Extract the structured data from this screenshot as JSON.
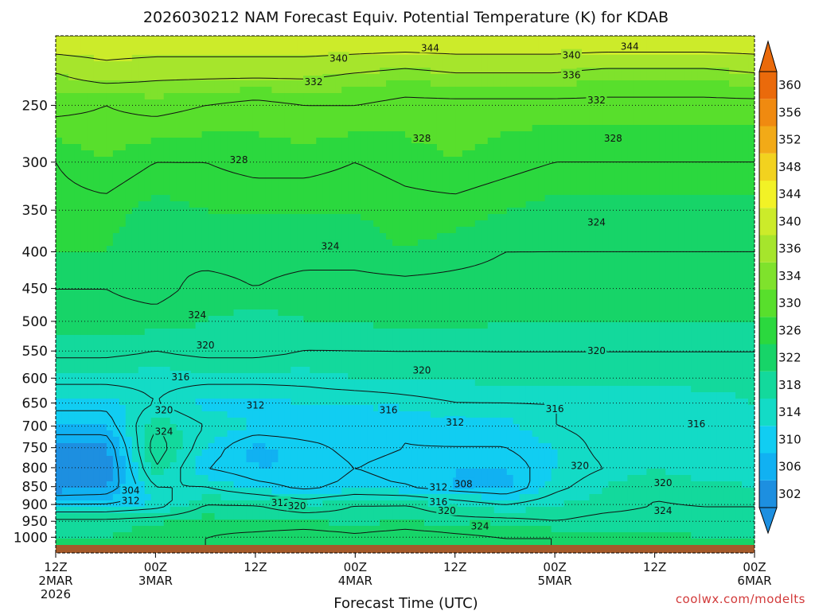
{
  "chart_data": {
    "type": "heatmap",
    "title": "2026030212 NAM Forecast Equiv. Potential Temperature (K) for KDAB",
    "xlabel": "Forecast Time (UTC)",
    "ylabel": "",
    "credit": "coolwx.com/modelts",
    "x_ticks": [
      {
        "hours": 0,
        "line1": "12Z",
        "line2": "2MAR",
        "line3": "2026"
      },
      {
        "hours": 12,
        "line1": "00Z",
        "line2": "3MAR",
        "line3": ""
      },
      {
        "hours": 24,
        "line1": "12Z",
        "line2": "",
        "line3": ""
      },
      {
        "hours": 36,
        "line1": "00Z",
        "line2": "4MAR",
        "line3": ""
      },
      {
        "hours": 48,
        "line1": "12Z",
        "line2": "",
        "line3": ""
      },
      {
        "hours": 60,
        "line1": "00Z",
        "line2": "5MAR",
        "line3": ""
      },
      {
        "hours": 72,
        "line1": "12Z",
        "line2": "",
        "line3": ""
      },
      {
        "hours": 84,
        "line1": "00Z",
        "line2": "6MAR",
        "line3": ""
      }
    ],
    "x_range_hours": [
      0,
      84
    ],
    "y_axis": "pressure (hPa), log scale, inverted",
    "y_ticks": [
      250,
      300,
      350,
      400,
      450,
      500,
      550,
      600,
      650,
      700,
      750,
      800,
      850,
      900,
      950,
      1000
    ],
    "y_range": [
      200,
      1025
    ],
    "colorbar": {
      "labels": [
        302,
        306,
        310,
        314,
        318,
        322,
        326,
        330,
        334,
        336,
        340,
        344,
        348,
        352,
        356,
        360
      ],
      "colors": [
        "#1d8fe0",
        "#11b1f2",
        "#11cdf2",
        "#13dbc6",
        "#13d99c",
        "#17d468",
        "#2bd83e",
        "#58df2c",
        "#7fe22c",
        "#a6e52c",
        "#cceb2a",
        "#f2f226",
        "#f2d21f",
        "#f2aa17",
        "#f08a10",
        "#ea6a0b"
      ]
    },
    "contour_interval": 4,
    "levels": [
      1000,
      950,
      900,
      850,
      800,
      750,
      700,
      650,
      600,
      550,
      500,
      450,
      400,
      350,
      300,
      250,
      225,
      200
    ],
    "times": [
      0,
      6,
      12,
      18,
      24,
      30,
      36,
      42,
      48,
      54,
      60,
      66,
      72,
      78,
      84
    ],
    "values": [
      [
        322,
        322,
        323,
        324,
        325,
        326,
        325,
        326,
        325,
        324,
        324,
        323,
        323,
        322,
        322
      ],
      [
        321,
        321,
        322,
        323,
        322,
        322,
        321,
        322,
        321,
        321,
        320,
        321,
        321,
        320,
        320
      ],
      [
        312,
        312,
        314,
        320,
        320,
        318,
        320,
        320,
        318,
        316,
        318,
        319,
        320,
        320,
        320
      ],
      [
        304,
        305,
        316,
        316,
        313,
        311,
        313,
        312,
        310,
        309,
        315,
        318,
        320,
        319,
        318
      ],
      [
        304,
        304,
        320,
        312,
        310,
        310,
        312,
        311,
        310,
        310,
        314,
        316,
        318,
        316,
        316
      ],
      [
        305,
        305,
        322,
        314,
        309,
        311,
        313,
        312,
        312,
        312,
        314,
        317,
        317,
        316,
        316
      ],
      [
        310,
        310,
        320,
        316,
        314,
        314,
        313,
        312,
        313,
        313,
        316,
        317,
        317,
        316,
        318
      ],
      [
        313,
        313,
        316,
        313,
        313,
        314,
        314,
        315,
        316,
        316,
        316,
        316,
        316,
        317,
        318
      ],
      [
        317,
        317,
        317,
        317,
        317,
        317,
        318,
        318,
        318,
        319,
        319,
        319,
        319,
        319,
        319
      ],
      [
        321,
        321,
        320,
        321,
        321,
        320,
        320,
        320,
        320,
        320,
        320,
        320,
        320,
        320,
        320
      ],
      [
        323,
        323,
        323,
        322,
        321,
        322,
        322,
        323,
        323,
        322,
        322,
        322,
        322,
        322,
        322
      ],
      [
        324,
        324,
        325,
        323,
        324,
        323,
        323,
        323,
        323,
        323,
        323,
        323,
        323,
        323,
        323
      ],
      [
        326,
        326,
        324,
        325,
        325,
        325,
        325,
        326,
        325,
        324,
        324,
        324,
        324,
        324,
        324
      ],
      [
        327,
        327,
        325,
        326,
        326,
        326,
        326,
        327,
        327,
        326,
        325,
        325,
        325,
        325,
        325
      ],
      [
        328,
        330,
        328,
        328,
        329,
        329,
        328,
        329,
        330,
        329,
        328,
        328,
        328,
        328,
        328
      ],
      [
        333,
        332,
        333,
        332,
        331,
        332,
        332,
        331,
        331,
        331,
        331,
        331,
        331,
        331,
        331
      ],
      [
        336,
        338,
        337,
        337,
        337,
        337,
        336,
        335,
        336,
        336,
        336,
        335,
        335,
        335,
        336
      ],
      [
        344,
        344,
        344,
        344,
        344,
        344,
        344,
        344,
        344,
        344,
        344,
        344,
        344,
        344,
        344
      ]
    ],
    "contour_labels": [
      {
        "text": "344",
        "hours": 45,
        "p": 208
      },
      {
        "text": "344",
        "hours": 69,
        "p": 207
      },
      {
        "text": "340",
        "hours": 34,
        "p": 215
      },
      {
        "text": "340",
        "hours": 62,
        "p": 213
      },
      {
        "text": "336",
        "hours": 62,
        "p": 227
      },
      {
        "text": "332",
        "hours": 31,
        "p": 232
      },
      {
        "text": "332",
        "hours": 65,
        "p": 246
      },
      {
        "text": "328",
        "hours": 22,
        "p": 298
      },
      {
        "text": "328",
        "hours": 44,
        "p": 278
      },
      {
        "text": "328",
        "hours": 67,
        "p": 278
      },
      {
        "text": "324",
        "hours": 33,
        "p": 393
      },
      {
        "text": "324",
        "hours": 65,
        "p": 364
      },
      {
        "text": "324",
        "hours": 17,
        "p": 490
      },
      {
        "text": "320",
        "hours": 18,
        "p": 540
      },
      {
        "text": "320",
        "hours": 44,
        "p": 585
      },
      {
        "text": "320",
        "hours": 65,
        "p": 550
      },
      {
        "text": "316",
        "hours": 15,
        "p": 598
      },
      {
        "text": "316",
        "hours": 40,
        "p": 665
      },
      {
        "text": "316",
        "hours": 60,
        "p": 662
      },
      {
        "text": "316",
        "hours": 77,
        "p": 695
      },
      {
        "text": "312",
        "hours": 24,
        "p": 655
      },
      {
        "text": "312",
        "hours": 48,
        "p": 692
      },
      {
        "text": "312",
        "hours": 46,
        "p": 852
      },
      {
        "text": "312",
        "hours": 9,
        "p": 890
      },
      {
        "text": "312",
        "hours": 27,
        "p": 895
      },
      {
        "text": "320",
        "hours": 13,
        "p": 665
      },
      {
        "text": "324",
        "hours": 13,
        "p": 712
      },
      {
        "text": "320",
        "hours": 29,
        "p": 905
      },
      {
        "text": "320",
        "hours": 47,
        "p": 918
      },
      {
        "text": "320",
        "hours": 63,
        "p": 795
      },
      {
        "text": "320",
        "hours": 73,
        "p": 840
      },
      {
        "text": "308",
        "hours": 49,
        "p": 843
      },
      {
        "text": "304",
        "hours": 9,
        "p": 860
      },
      {
        "text": "316",
        "hours": 46,
        "p": 893
      },
      {
        "text": "324",
        "hours": 73,
        "p": 918
      },
      {
        "text": "324",
        "hours": 51,
        "p": 965
      }
    ]
  }
}
